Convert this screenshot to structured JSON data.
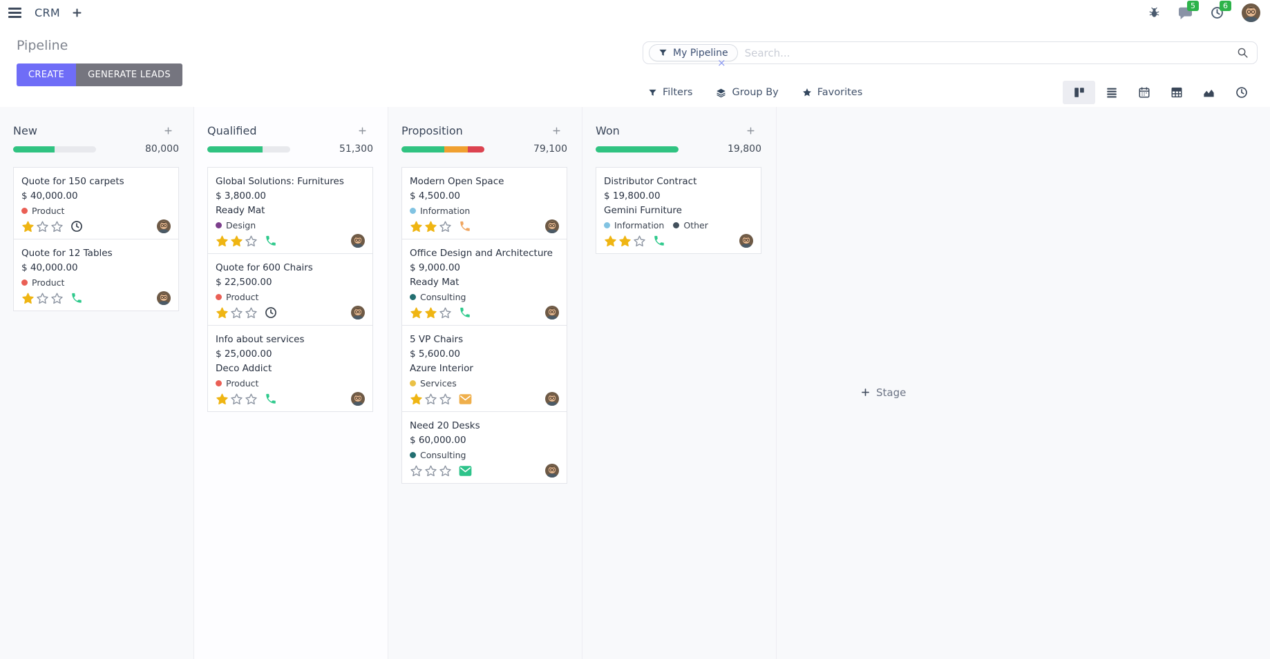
{
  "navbar": {
    "app_name": "CRM",
    "messages_badge": "5",
    "activities_badge": "6"
  },
  "control_panel": {
    "title": "Pipeline",
    "buttons": {
      "create": "CREATE",
      "generate_leads": "GENERATE LEADS"
    },
    "search": {
      "facet_label": "My Pipeline",
      "facet_remove": "×",
      "placeholder": "Search..."
    },
    "menus": {
      "filters": "Filters",
      "group_by": "Group By",
      "favorites": "Favorites"
    },
    "view_switcher": [
      "kanban",
      "list",
      "calendar",
      "pivot",
      "graph",
      "activity"
    ],
    "active_view": "kanban"
  },
  "colors": {
    "primary": "#6f6df7",
    "secondary_button": "#75757f",
    "badge_green": "#2db34a",
    "star_gold": "#efb513",
    "star_empty_stroke": "#8d95a2",
    "progress_track": "#e8e9ed",
    "icon_dark": "#3a4759"
  },
  "board": {
    "add_stage_label": "Stage",
    "columns": [
      {
        "name": "New",
        "total": "80,000",
        "progress": [
          {
            "color": "#30c381",
            "pct": 50
          }
        ],
        "cards": [
          {
            "title": "Quote for 150 carpets",
            "amount": "$ 40,000.00",
            "tags": [
              {
                "label": "Product",
                "color": "#ea5f55"
              }
            ],
            "stars": 1,
            "activity": {
              "type": "clock",
              "color": "#39424e"
            }
          },
          {
            "title": "Quote for 12 Tables",
            "amount": "$ 40,000.00",
            "tags": [
              {
                "label": "Product",
                "color": "#ea5f55"
              }
            ],
            "stars": 1,
            "activity": {
              "type": "phone",
              "color": "#2ec98c"
            }
          }
        ]
      },
      {
        "name": "Qualified",
        "total": "51,300",
        "progress": [
          {
            "color": "#30c381",
            "pct": 67
          }
        ],
        "cards": [
          {
            "title": "Global Solutions: Furnitures",
            "amount": "$ 3,800.00",
            "partner": "Ready Mat",
            "tags": [
              {
                "label": "Design",
                "color": "#7c3f8c"
              }
            ],
            "stars": 2,
            "activity": {
              "type": "phone",
              "color": "#2ec98c"
            }
          },
          {
            "title": "Quote for 600 Chairs",
            "amount": "$ 22,500.00",
            "tags": [
              {
                "label": "Product",
                "color": "#ea5f55"
              }
            ],
            "stars": 1,
            "activity": {
              "type": "clock",
              "color": "#39424e"
            }
          },
          {
            "title": "Info about services",
            "amount": "$ 25,000.00",
            "partner": "Deco Addict",
            "tags": [
              {
                "label": "Product",
                "color": "#ea5f55"
              }
            ],
            "stars": 1,
            "activity": {
              "type": "phone",
              "color": "#2ec98c"
            }
          }
        ]
      },
      {
        "name": "Proposition",
        "total": "79,100",
        "progress": [
          {
            "color": "#30c381",
            "pct": 52
          },
          {
            "color": "#f0a030",
            "pct": 28
          },
          {
            "color": "#dc4350",
            "pct": 20
          }
        ],
        "cards": [
          {
            "title": "Modern Open Space",
            "amount": "$ 4,500.00",
            "tags": [
              {
                "label": "Information",
                "color": "#81c3e2"
              }
            ],
            "stars": 2,
            "activity": {
              "type": "phone",
              "color": "#f0a660"
            }
          },
          {
            "title": "Office Design and Architecture",
            "amount": "$ 9,000.00",
            "partner": "Ready Mat",
            "tags": [
              {
                "label": "Consulting",
                "color": "#236f71"
              }
            ],
            "stars": 2,
            "activity": {
              "type": "phone",
              "color": "#2ec98c"
            }
          },
          {
            "title": "5 VP Chairs",
            "amount": "$ 5,600.00",
            "partner": "Azure Interior",
            "tags": [
              {
                "label": "Services",
                "color": "#eac146"
              }
            ],
            "stars": 1,
            "activity": {
              "type": "envelope",
              "color": "#efaf4b"
            }
          },
          {
            "title": "Need 20 Desks",
            "amount": "$ 60,000.00",
            "tags": [
              {
                "label": "Consulting",
                "color": "#236f71"
              }
            ],
            "stars": 0,
            "activity": {
              "type": "envelope",
              "color": "#2dc38a"
            }
          }
        ]
      },
      {
        "name": "Won",
        "total": "19,800",
        "progress": [
          {
            "color": "#30c381",
            "pct": 100
          }
        ],
        "cards": [
          {
            "title": "Distributor Contract",
            "amount": "$ 19,800.00",
            "partner": "Gemini Furniture",
            "tags": [
              {
                "label": "Information",
                "color": "#81c3e2"
              },
              {
                "label": "Other",
                "color": "#42505c"
              }
            ],
            "stars": 2,
            "activity": {
              "type": "phone",
              "color": "#2ec98c"
            }
          }
        ]
      }
    ]
  }
}
